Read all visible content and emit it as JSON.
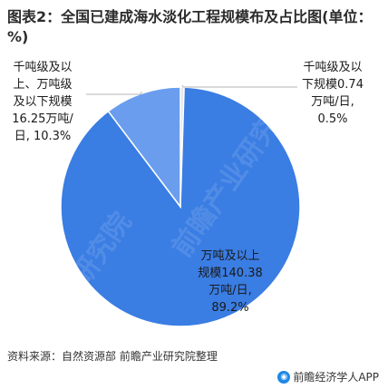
{
  "title": "图表2：全国已建成海水淡化工程规模布及占比图(单位：%)",
  "source": "资料来源：自然资源部 前瞻产业研究院整理",
  "brand": "前瞻经济学人APP",
  "watermark": "前瞻产业研究院",
  "colors": {
    "large": "#3a7de3",
    "medium": "#6a9ded",
    "small": "#e6e6e6",
    "stroke": "#ffffff"
  },
  "chart_data": {
    "type": "pie",
    "slices": [
      {
        "label_lines": [
          "千吨级及以",
          "下规模0.74",
          "万吨/日,",
          "0.5%"
        ],
        "value_wan_ton_per_day": 0.74,
        "percent": 0.5
      },
      {
        "label_lines": [
          "万吨及以上",
          "规模140.38",
          "万吨/日,",
          "89.2%"
        ],
        "value_wan_ton_per_day": 140.38,
        "percent": 89.2
      },
      {
        "label_lines": [
          "千吨级及以",
          "上、万吨级",
          "及以下规模",
          "16.25万吨/",
          "日, 10.3%"
        ],
        "value_wan_ton_per_day": 16.25,
        "percent": 10.3
      }
    ]
  }
}
